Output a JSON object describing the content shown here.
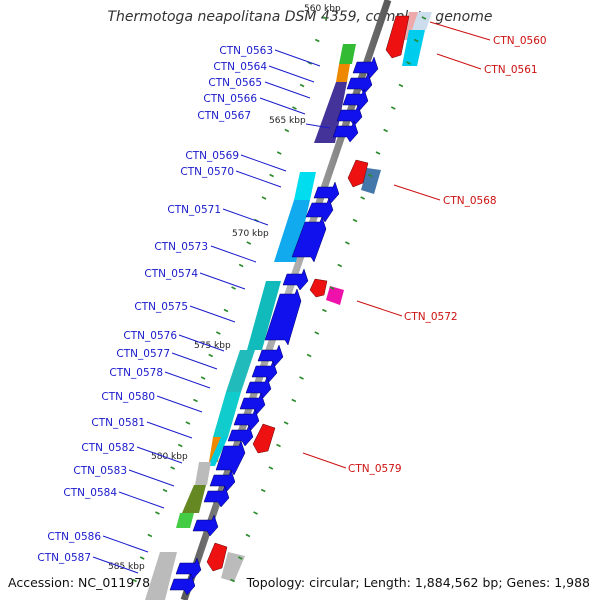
{
  "title": "Thermotoga neapolitana DSM 4359, complete genome",
  "accession": "Accession: NC_011978",
  "topology": "Topology: circular; Length: 1,884,562 bp; Genes: 1,988",
  "scale_labels": [
    "560 kbp",
    "565 kbp",
    "570 kbp",
    "575 kbp",
    "580 kbp",
    "585 kbp"
  ],
  "colors": {
    "left_label": "#1a1acc",
    "right_label": "#cc1111",
    "forward_arrow": "#1111ee",
    "reverse_arrow": "#ee1111",
    "backbone": "#777777",
    "tick": "#2a8a2a"
  },
  "left_genes": [
    "CTN_0563",
    "CTN_0564",
    "CTN_0565",
    "CTN_0566",
    "CTN_0567",
    "CTN_0569",
    "CTN_0570",
    "CTN_0571",
    "CTN_0573",
    "CTN_0574",
    "CTN_0575",
    "CTN_0576",
    "CTN_0577",
    "CTN_0578",
    "CTN_0580",
    "CTN_0581",
    "CTN_0582",
    "CTN_0583",
    "CTN_0584",
    "CTN_0586",
    "CTN_0587"
  ],
  "right_genes": [
    "CTN_0560",
    "CTN_0561",
    "CTN_0568",
    "CTN_0572",
    "CTN_0579"
  ]
}
